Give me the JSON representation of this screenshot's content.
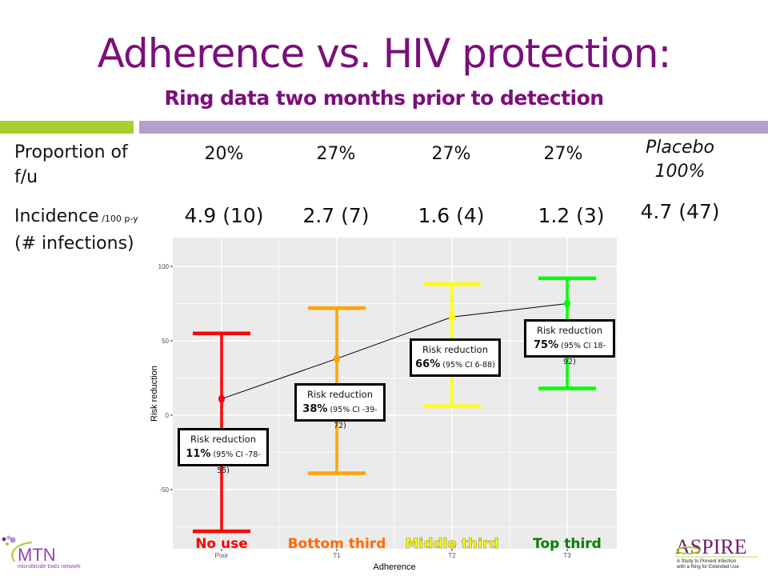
{
  "slide": {
    "title": "Adherence vs. HIV protection:",
    "subtitle": "Ring data two months prior to detection",
    "colors": {
      "title": "#7a0f7a",
      "accent_green": "#a8cf2e",
      "accent_purple": "#b1a2c9"
    }
  },
  "table": {
    "row1_label_line1": "Proportion of",
    "row1_label_line2": "f/u",
    "row2_label_main": "Incidence",
    "row2_label_unit": " /100 p-y",
    "row2_label_line2": "(# infections)",
    "proportions": [
      "20%",
      "27%",
      "27%",
      "27%"
    ],
    "incidence": [
      "4.9 (10)",
      "2.7 (7)",
      "1.6 (4)",
      "1.2 (3)"
    ],
    "placebo_label": "Placebo",
    "placebo_proportion": "100%",
    "placebo_incidence": "4.7 (47)"
  },
  "chart_data": {
    "type": "scatter",
    "title": "",
    "xlabel": "Adherence",
    "ylabel": "Risk reduction",
    "categories": [
      "Poor",
      "T1",
      "T2",
      "T3"
    ],
    "category_labels": [
      "No use",
      "Bottom third",
      "Middle third",
      "Top third"
    ],
    "category_label_colors": [
      "#ff0000",
      "#ff6a00",
      "#ffff00",
      "#008000"
    ],
    "series": [
      {
        "name": "Risk reduction",
        "values": [
          11,
          38,
          66,
          75
        ],
        "ci_low": [
          -78,
          -39,
          6,
          18
        ],
        "ci_high": [
          55,
          72,
          88,
          92
        ],
        "colors": [
          "#ff0000",
          "#ffa500",
          "#ffff00",
          "#00ff00"
        ],
        "connected_line_color": "#000000"
      }
    ],
    "annotations": [
      {
        "line1": "Risk reduction",
        "value": "11%",
        "ci": "(95% CI -78-55)"
      },
      {
        "line1": "Risk reduction",
        "value": "38%",
        "ci": "(95% CI -39-72)"
      },
      {
        "line1": "Risk reduction",
        "value": "66%",
        "ci": "(95% CI 6-88)"
      },
      {
        "line1": "Risk reduction",
        "value": "75%",
        "ci": "(95% CI 18-92)"
      }
    ],
    "yticks": [
      100,
      50,
      0,
      -50
    ],
    "ylim": [
      -90,
      120
    ],
    "grid": true,
    "panel_background": "#ebebeb"
  },
  "logos": {
    "left": {
      "name": "MTN",
      "tagline": "microbicide trials network"
    },
    "right": {
      "name": "ASPIRE",
      "tagline_line1": "A Study to Prevent Infection",
      "tagline_line2": "with a Ring for Extended Use"
    }
  }
}
